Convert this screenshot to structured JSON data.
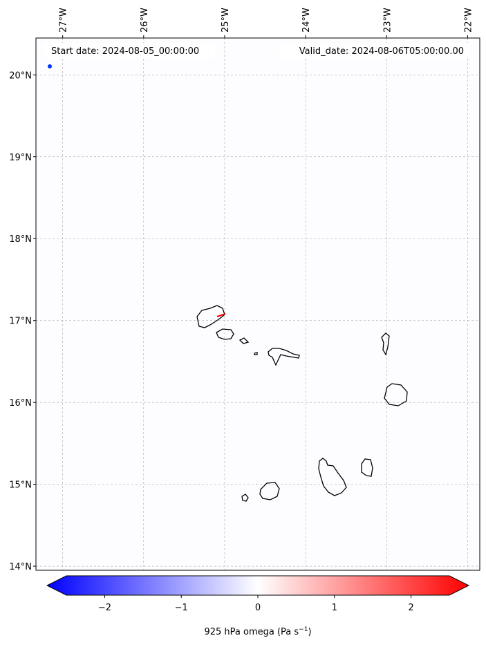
{
  "map": {
    "start_date": "Start date: 2024-08-05_00:00:00",
    "valid_date": "Valid_date: 2024-08-06T05:00:00.00",
    "lon_range": [
      -27.33,
      -21.85
    ],
    "lat_range": [
      13.95,
      20.45
    ],
    "lon_ticks": [
      {
        "value": -27,
        "label": "27°W"
      },
      {
        "value": -26,
        "label": "26°W"
      },
      {
        "value": -25,
        "label": "25°W"
      },
      {
        "value": -24,
        "label": "24°W"
      },
      {
        "value": -23,
        "label": "23°W"
      },
      {
        "value": -22,
        "label": "22°W"
      }
    ],
    "lat_ticks": [
      {
        "value": 20,
        "label": "20°N"
      },
      {
        "value": 19,
        "label": "19°N"
      },
      {
        "value": 18,
        "label": "18°N"
      },
      {
        "value": 17,
        "label": "17°N"
      },
      {
        "value": 16,
        "label": "16°N"
      },
      {
        "value": 15,
        "label": "15°N"
      },
      {
        "value": 14,
        "label": "14°N"
      }
    ],
    "gridlines": true
  },
  "colorbar": {
    "label_main": "925 hPa omega (Pa s",
    "label_sup": "−1",
    "label_end": ")",
    "range": [
      -2.5,
      2.5
    ],
    "extend": "both",
    "colormap": "bwr",
    "low_color": "#0000ff",
    "mid_color": "#ffffff",
    "high_color": "#ff0000",
    "ticks": [
      {
        "value": -2,
        "label": "−2"
      },
      {
        "value": -1,
        "label": "−1"
      },
      {
        "value": 0,
        "label": "0"
      },
      {
        "value": 1,
        "label": "1"
      },
      {
        "value": 2,
        "label": "2"
      }
    ]
  }
}
